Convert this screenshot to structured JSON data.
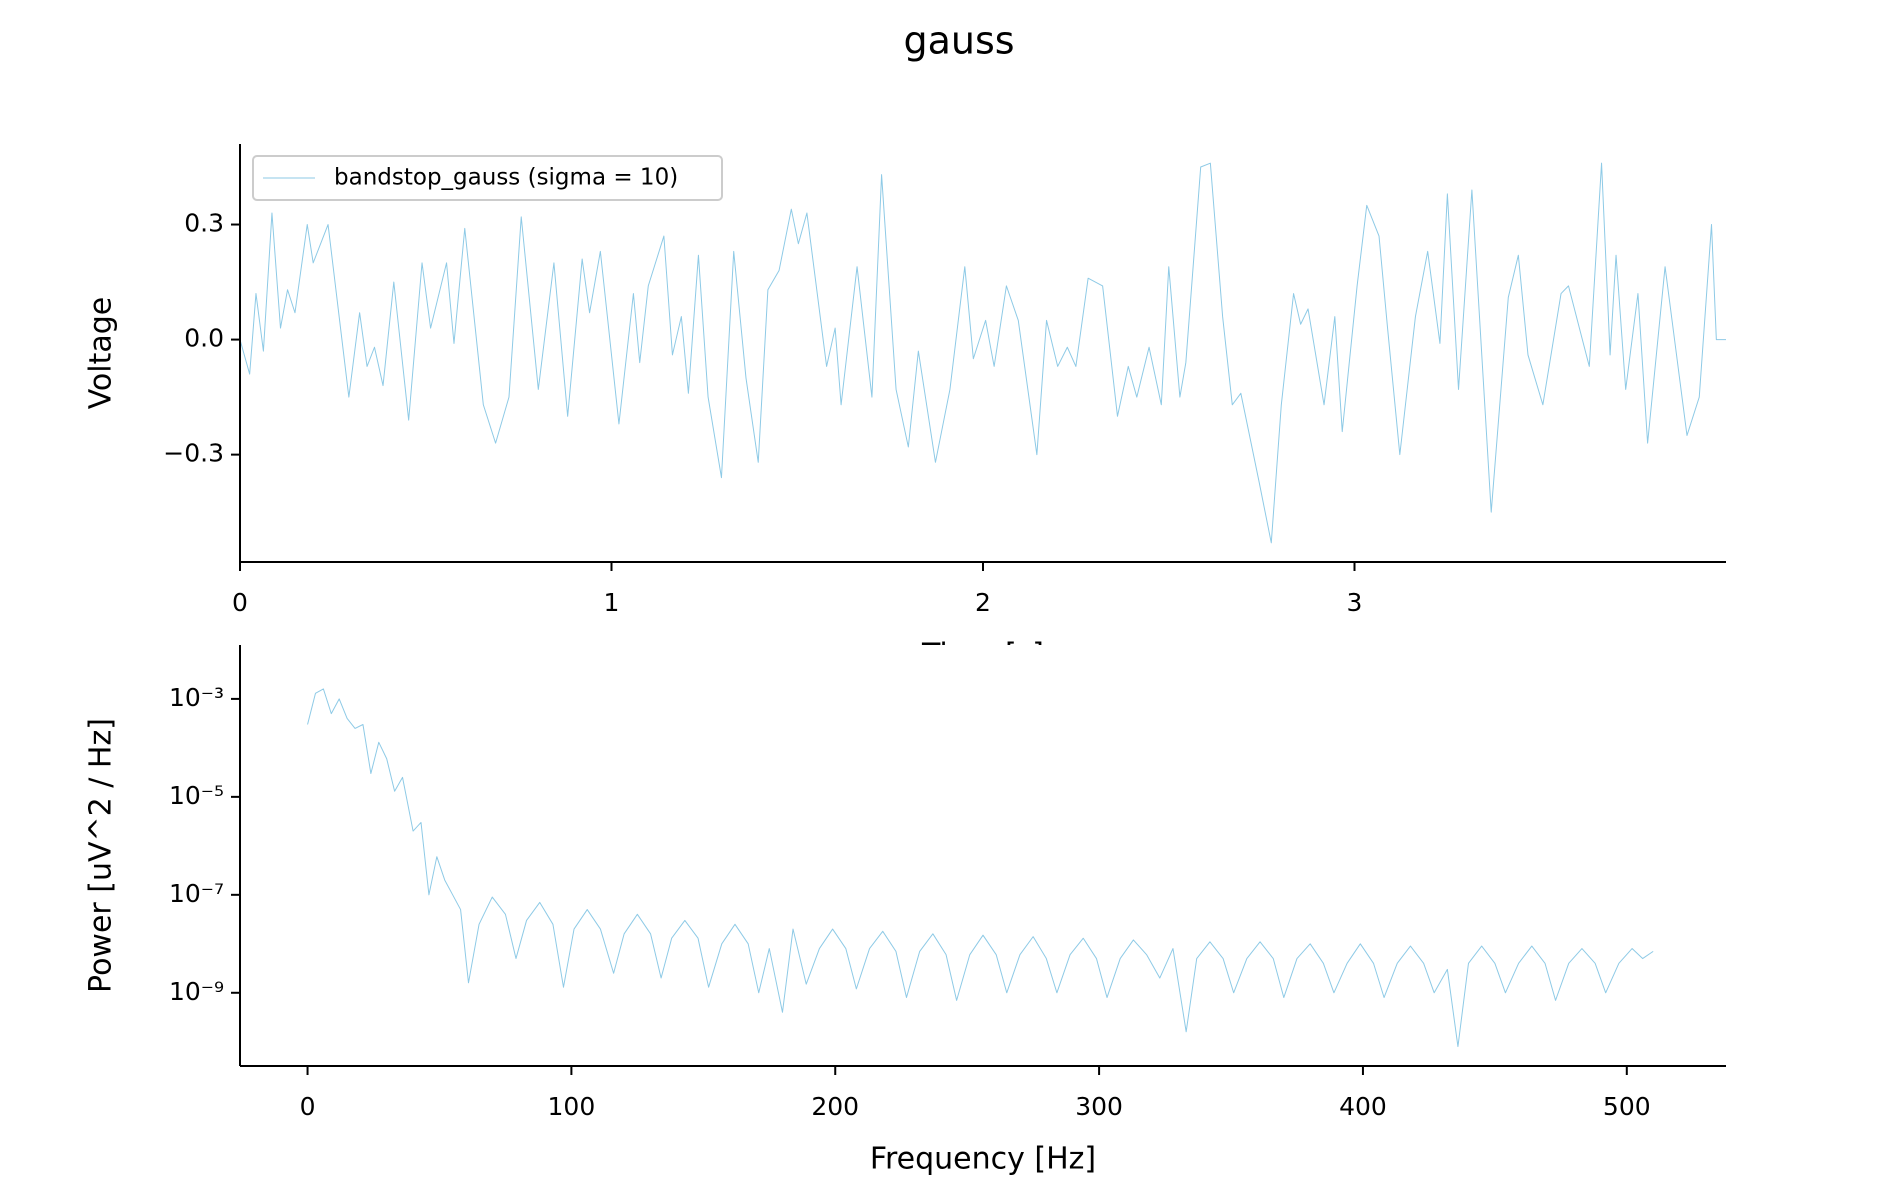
{
  "title": "gauss",
  "chart_data": [
    {
      "type": "line",
      "xlabel": "Time [s]",
      "ylabel": "Voltage",
      "legend": "upper left",
      "xlim": [
        0,
        4.0
      ],
      "ylim": [
        -0.58,
        0.51
      ],
      "xticks": [
        0,
        1,
        2,
        3
      ],
      "yticks": [
        {
          "value": -0.3,
          "label": "−0.3"
        },
        {
          "value": 0,
          "label": "0.0"
        },
        0.3
      ],
      "series": [
        {
          "name": "bandstop_gauss (sigma = 10)",
          "color": "#8ecae6",
          "x": [
            0,
            0.026,
            0.043,
            0.063,
            0.086,
            0.109,
            0.128,
            0.148,
            0.181,
            0.197,
            0.237,
            0.293,
            0.322,
            0.342,
            0.362,
            0.385,
            0.414,
            0.454,
            0.49,
            0.513,
            0.556,
            0.576,
            0.605,
            0.655,
            0.688,
            0.724,
            0.757,
            0.803,
            0.845,
            0.882,
            0.921,
            0.941,
            0.97,
            1.02,
            1.059,
            1.076,
            1.099,
            1.141,
            1.164,
            1.188,
            1.207,
            1.234,
            1.26,
            1.296,
            1.329,
            1.362,
            1.395,
            1.421,
            1.451,
            1.484,
            1.503,
            1.526,
            1.579,
            1.602,
            1.618,
            1.661,
            1.701,
            1.727,
            1.766,
            1.799,
            1.826,
            1.872,
            1.911,
            1.951,
            1.974,
            2.007,
            2.03,
            2.063,
            2.095,
            2.145,
            2.171,
            2.201,
            2.227,
            2.25,
            2.283,
            2.322,
            2.362,
            2.391,
            2.414,
            2.447,
            2.48,
            2.5,
            2.53,
            2.546,
            2.586,
            2.612,
            2.645,
            2.671,
            2.694,
            2.743,
            2.776,
            2.803,
            2.836,
            2.855,
            2.875,
            2.918,
            2.947,
            2.967,
            3.007,
            3.033,
            3.066,
            3.089,
            3.122,
            3.164,
            3.197,
            3.23,
            3.25,
            3.28,
            3.316,
            3.368,
            3.414,
            3.441,
            3.467,
            3.507,
            3.556,
            3.576,
            3.632,
            3.665,
            3.688,
            3.704,
            3.73,
            3.763,
            3.789,
            3.836,
            3.895,
            3.928,
            3.961,
            3.974,
            4.0
          ],
          "values": [
            0,
            -0.09,
            0.12,
            -0.03,
            0.33,
            0.03,
            0.13,
            0.07,
            0.3,
            0.2,
            0.3,
            -0.15,
            0.07,
            -0.07,
            -0.02,
            -0.12,
            0.15,
            -0.21,
            0.2,
            0.03,
            0.2,
            -0.01,
            0.29,
            -0.17,
            -0.27,
            -0.15,
            0.32,
            -0.13,
            0.2,
            -0.2,
            0.21,
            0.07,
            0.23,
            -0.22,
            0.12,
            -0.06,
            0.14,
            0.27,
            -0.04,
            0.06,
            -0.14,
            0.22,
            -0.15,
            -0.36,
            0.23,
            -0.1,
            -0.32,
            0.13,
            0.18,
            0.34,
            0.25,
            0.33,
            -0.07,
            0.03,
            -0.17,
            0.19,
            -0.15,
            0.43,
            -0.13,
            -0.28,
            -0.03,
            -0.32,
            -0.13,
            0.19,
            -0.05,
            0.05,
            -0.07,
            0.14,
            0.05,
            -0.3,
            0.05,
            -0.07,
            -0.02,
            -0.07,
            0.16,
            0.14,
            -0.2,
            -0.07,
            -0.15,
            -0.02,
            -0.17,
            0.19,
            -0.15,
            -0.06,
            0.45,
            0.46,
            0.06,
            -0.17,
            -0.14,
            -0.37,
            -0.53,
            -0.17,
            0.12,
            0.04,
            0.08,
            -0.17,
            0.06,
            -0.24,
            0.14,
            0.35,
            0.27,
            0.03,
            -0.3,
            0.06,
            0.23,
            -0.01,
            0.38,
            -0.13,
            0.39,
            -0.45,
            0.11,
            0.22,
            -0.04,
            -0.17,
            0.12,
            0.14,
            -0.07,
            0.46,
            -0.04,
            0.22,
            -0.13,
            0.12,
            -0.27,
            0.19,
            -0.25,
            -0.15,
            0.3,
            0,
            0
          ]
        }
      ]
    },
    {
      "type": "line",
      "xlabel": "Frequency [Hz]",
      "ylabel": "Power [uV^2 / Hz]",
      "yscale": "log",
      "xlim": [
        -25.6,
        537.6
      ],
      "ylim": [
        3.2e-11,
        0.0126
      ],
      "xticks": [
        0,
        100,
        200,
        300,
        400,
        500
      ],
      "yticks": [
        {
          "value": 1e-09,
          "label": "10⁻⁹"
        },
        {
          "value": 1e-07,
          "label": "10⁻⁷"
        },
        {
          "value": 1e-05,
          "label": "10⁻⁵"
        },
        {
          "value": 0.001,
          "label": "10⁻³"
        }
      ],
      "series": [
        {
          "color": "#8ecae6",
          "x": [
            0,
            3,
            6,
            9,
            12,
            15,
            18,
            21,
            24,
            27,
            30,
            33,
            36,
            40,
            43,
            46,
            49,
            52,
            55,
            58,
            61,
            65,
            70,
            75,
            79,
            83,
            88,
            93,
            97,
            101,
            106,
            111,
            116,
            120,
            125,
            130,
            134,
            138,
            143,
            148,
            152,
            157,
            162,
            167,
            171,
            175,
            180,
            184,
            189,
            194,
            199,
            204,
            208,
            213,
            218,
            223,
            227,
            232,
            237,
            242,
            246,
            251,
            256,
            261,
            265,
            270,
            275,
            280,
            284,
            289,
            294,
            299,
            303,
            308,
            313,
            318,
            323,
            328,
            333,
            337,
            342,
            347,
            351,
            356,
            361,
            366,
            370,
            375,
            380,
            385,
            389,
            394,
            399,
            404,
            408,
            413,
            418,
            423,
            427,
            432,
            436,
            440,
            445,
            450,
            454,
            459,
            464,
            469,
            473,
            478,
            483,
            488,
            492,
            497,
            502,
            506,
            510
          ],
          "values": [
            0.0003,
            0.0013,
            0.0016,
            0.0005,
            0.001,
            0.0004,
            0.00025,
            0.0003,
            3e-05,
            0.00013,
            6e-05,
            1.3e-05,
            2.5e-05,
            2e-06,
            3e-06,
            1e-07,
            6e-07,
            2e-07,
            1e-07,
            5e-08,
            1.6e-09,
            2.5e-08,
            9e-08,
            4e-08,
            5e-09,
            3e-08,
            7e-08,
            2.5e-08,
            1.3e-09,
            2e-08,
            5e-08,
            2e-08,
            2.5e-09,
            1.6e-08,
            4e-08,
            1.6e-08,
            2e-09,
            1.3e-08,
            3e-08,
            1.3e-08,
            1.3e-09,
            1e-08,
            2.5e-08,
            1e-08,
            1e-09,
            8e-09,
            4e-10,
            2e-08,
            1.5e-09,
            8e-09,
            2e-08,
            8e-09,
            1.2e-09,
            8e-09,
            1.8e-08,
            7e-09,
            8e-10,
            7e-09,
            1.6e-08,
            6e-09,
            7e-10,
            6e-09,
            1.5e-08,
            6e-09,
            1e-09,
            6e-09,
            1.4e-08,
            5e-09,
            1e-09,
            6e-09,
            1.3e-08,
            5e-09,
            8e-10,
            5e-09,
            1.2e-08,
            6e-09,
            2e-09,
            8e-09,
            1.6e-10,
            5e-09,
            1.1e-08,
            5e-09,
            1e-09,
            5e-09,
            1.1e-08,
            5e-09,
            8e-10,
            5e-09,
            1e-08,
            4e-09,
            1e-09,
            4e-09,
            1e-08,
            4e-09,
            8e-10,
            4e-09,
            9e-09,
            4e-09,
            1e-09,
            3e-09,
            8e-11,
            4e-09,
            9e-09,
            4e-09,
            1e-09,
            4e-09,
            9e-09,
            4e-09,
            7e-10,
            4e-09,
            8e-09,
            4e-09,
            1e-09,
            4e-09,
            8e-09,
            5e-09,
            7e-09
          ]
        }
      ]
    }
  ]
}
